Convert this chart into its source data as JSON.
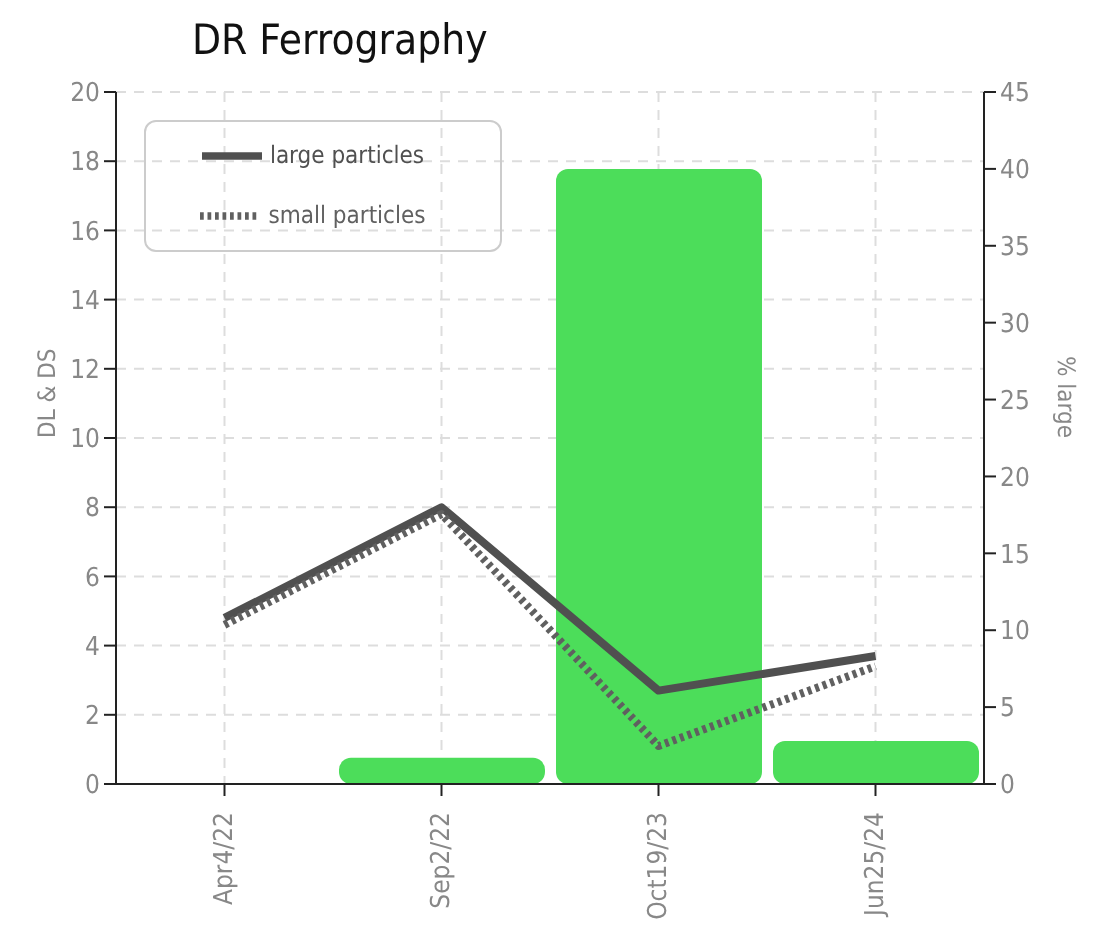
{
  "chart_data": {
    "type": "bar",
    "title": "DR Ferrography",
    "ylabel": "DL & DS",
    "y2label": "% large",
    "categories": [
      "Apr4/22",
      "Sep2/22",
      "Oct19/23",
      "Jun25/24"
    ],
    "series": [
      {
        "axis": "y2",
        "color": "#4cdd5a",
        "values": [
          0,
          1.7,
          40,
          2.8
        ]
      },
      {
        "type": "line",
        "name": "large particles",
        "color": "#505050",
        "line_style": "solid",
        "values": [
          4.8,
          8.0,
          2.7,
          3.7
        ]
      },
      {
        "type": "line",
        "name": "small particles",
        "color": "#606060",
        "line_style": "dotted",
        "values": [
          4.6,
          7.8,
          1.1,
          3.4
        ]
      }
    ],
    "ylim": [
      0,
      20
    ],
    "yticks": [
      0,
      2,
      4,
      6,
      8,
      10,
      12,
      14,
      16,
      18,
      20
    ],
    "y2lim": [
      0,
      45
    ],
    "y2ticks": [
      0,
      5,
      10,
      15,
      20,
      25,
      30,
      35,
      40,
      45
    ],
    "grid": true,
    "legend": "top left",
    "marker": "none"
  }
}
